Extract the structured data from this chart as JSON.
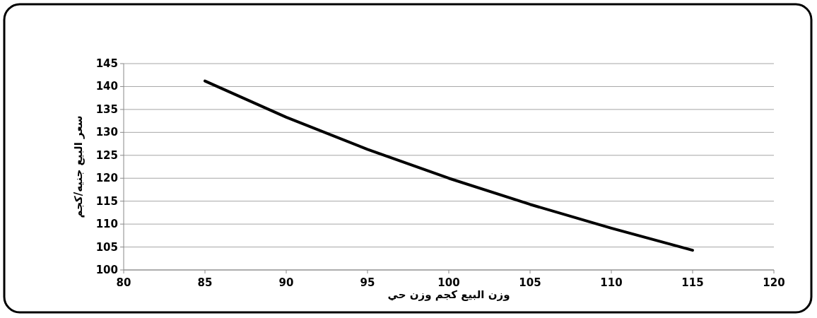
{
  "chart_data": {
    "type": "line",
    "xlabel": "وزن البيع كجم وزن حي",
    "ylabel": "سعر البيع جنيه/كجم",
    "x": [
      85,
      90,
      95,
      100,
      105,
      110,
      115
    ],
    "series": [
      {
        "color": "#000000",
        "values": [
          141.2,
          133.3,
          126.3,
          120,
          114.3,
          109.1,
          104.3
        ]
      }
    ],
    "xlim": [
      80,
      120
    ],
    "xticks": [
      80,
      85,
      90,
      95,
      100,
      105,
      110,
      115,
      120
    ],
    "ylim": [
      100,
      145
    ],
    "yticks": [
      100,
      105,
      110,
      115,
      120,
      125,
      130,
      135,
      140,
      145
    ],
    "grid": "y"
  }
}
